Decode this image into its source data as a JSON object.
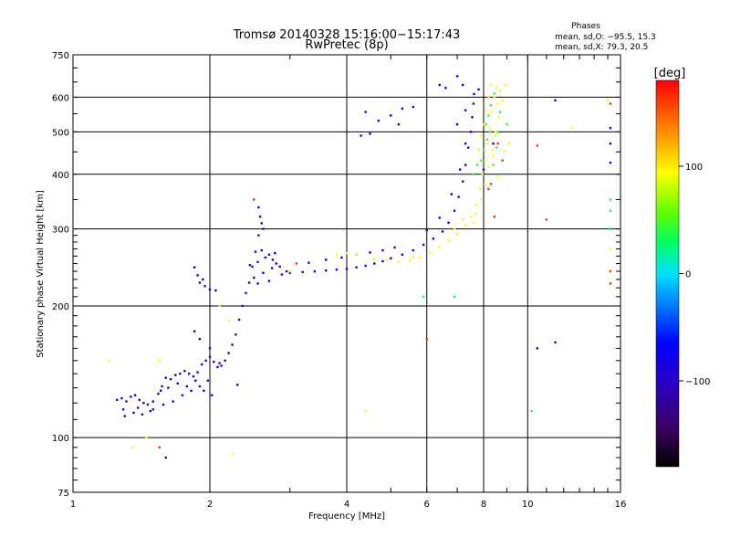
{
  "chart_data": {
    "type": "scatter",
    "title": "Tromsø 20140328 15:16:00−15:17:43",
    "subtitle": "RwPretec (8p)",
    "xlabel": "Frequency [MHz]",
    "ylabel": "Stationary phase Virtual Height [km]",
    "x_scale": "log",
    "y_scale": "log",
    "xlim": [
      1,
      16
    ],
    "ylim": [
      75,
      750
    ],
    "x_ticks": [
      1,
      2,
      4,
      6,
      8,
      10,
      16
    ],
    "y_ticks": [
      75,
      100,
      200,
      300,
      400,
      500,
      600,
      750
    ],
    "grid": true,
    "stats": {
      "heading": "Phases",
      "line_o": "mean, sd,O: −95.5, 15.3",
      "line_x": "mean, sd,X:  79.3, 20.5"
    },
    "colorbar": {
      "label": "[deg]",
      "range": [
        -180,
        180
      ],
      "ticks": [
        {
          "value": 100,
          "label": "100"
        },
        {
          "value": 0,
          "label": "0"
        },
        {
          "value": -100,
          "label": "−100"
        }
      ]
    },
    "series": [
      {
        "color_value": -110,
        "points": [
          [
            1.25,
            122
          ],
          [
            1.28,
            123
          ],
          [
            1.31,
            121
          ],
          [
            1.34,
            124
          ],
          [
            1.37,
            125
          ],
          [
            1.4,
            122
          ],
          [
            1.43,
            120
          ],
          [
            1.46,
            119
          ],
          [
            1.5,
            121
          ],
          [
            1.54,
            126
          ],
          [
            1.57,
            131
          ],
          [
            1.6,
            137
          ],
          [
            1.64,
            136
          ],
          [
            1.68,
            139
          ],
          [
            1.72,
            140
          ],
          [
            1.76,
            142
          ],
          [
            1.8,
            140
          ],
          [
            1.84,
            138
          ],
          [
            1.88,
            141
          ],
          [
            1.92,
            147
          ],
          [
            1.96,
            150
          ],
          [
            2.0,
            153
          ],
          [
            2.04,
            149
          ],
          [
            2.08,
            145
          ],
          [
            2.12,
            146
          ],
          [
            2.16,
            150
          ],
          [
            2.2,
            156
          ],
          [
            2.24,
            163
          ],
          [
            2.28,
            172
          ],
          [
            2.32,
            186
          ],
          [
            2.36,
            200
          ],
          [
            2.4,
            214
          ],
          [
            2.44,
            226
          ],
          [
            2.48,
            246
          ],
          [
            2.52,
            266
          ],
          [
            2.56,
            290
          ],
          [
            2.6,
            309
          ],
          [
            2.56,
            336
          ],
          [
            2.58,
            320
          ],
          [
            2.62,
            300
          ],
          [
            1.3,
            112
          ],
          [
            1.36,
            114
          ],
          [
            1.42,
            113
          ],
          [
            1.5,
            116
          ],
          [
            1.58,
            119
          ],
          [
            1.66,
            121
          ],
          [
            1.74,
            125
          ],
          [
            1.82,
            128
          ],
          [
            1.9,
            131
          ],
          [
            1.98,
            135
          ],
          [
            1.29,
            116
          ],
          [
            1.39,
            117
          ],
          [
            1.48,
            115
          ],
          [
            1.56,
            128
          ],
          [
            1.62,
            130
          ],
          [
            1.7,
            133
          ],
          [
            1.78,
            131
          ],
          [
            1.86,
            135
          ],
          [
            1.94,
            128
          ],
          [
            2.02,
            125
          ],
          [
            1.85,
            245
          ],
          [
            1.9,
            226
          ],
          [
            1.95,
            222
          ],
          [
            2.0,
            218
          ],
          [
            2.06,
            217
          ],
          [
            1.88,
            235
          ],
          [
            1.93,
            230
          ],
          [
            1.6,
            90
          ],
          [
            1.85,
            175
          ],
          [
            1.9,
            168
          ],
          [
            2.0,
            160
          ],
          [
            2.1,
            148
          ],
          [
            2.3,
            132
          ]
        ]
      },
      {
        "color_value": -85,
        "points": [
          [
            2.45,
            248
          ],
          [
            2.55,
            252
          ],
          [
            2.65,
            258
          ],
          [
            2.75,
            255
          ],
          [
            2.85,
            246
          ],
          [
            2.95,
            240
          ],
          [
            2.6,
            268
          ],
          [
            2.7,
            262
          ],
          [
            2.8,
            250
          ],
          [
            2.5,
            232
          ],
          [
            2.62,
            238
          ],
          [
            2.74,
            244
          ],
          [
            2.88,
            236
          ],
          [
            2.55,
            225
          ],
          [
            2.7,
            228
          ],
          [
            2.78,
            264
          ],
          [
            3.0,
            238
          ],
          [
            3.2,
            239
          ],
          [
            3.4,
            240
          ],
          [
            3.6,
            241
          ],
          [
            3.8,
            242
          ],
          [
            4.0,
            243
          ],
          [
            4.2,
            245
          ],
          [
            4.4,
            247
          ],
          [
            4.6,
            250
          ],
          [
            4.8,
            253
          ],
          [
            5.0,
            257
          ],
          [
            5.3,
            262
          ],
          [
            5.6,
            268
          ],
          [
            5.9,
            276
          ],
          [
            6.2,
            285
          ],
          [
            6.5,
            296
          ],
          [
            6.7,
            310
          ],
          [
            6.9,
            330
          ],
          [
            7.05,
            355
          ],
          [
            7.2,
            385
          ],
          [
            7.3,
            420
          ],
          [
            7.4,
            460
          ],
          [
            7.5,
            500
          ],
          [
            7.55,
            540
          ],
          [
            7.6,
            580
          ],
          [
            7.62,
            610
          ],
          [
            3.3,
            251
          ],
          [
            3.6,
            255
          ],
          [
            3.9,
            258
          ],
          [
            4.2,
            262
          ],
          [
            4.5,
            265
          ],
          [
            4.8,
            268
          ],
          [
            5.1,
            272
          ],
          [
            6.0,
            298
          ],
          [
            6.4,
            318
          ],
          [
            6.8,
            360
          ],
          [
            7.1,
            410
          ],
          [
            7.3,
            470
          ],
          [
            7.0,
            520
          ],
          [
            7.3,
            560
          ],
          [
            7.2,
            640
          ],
          [
            4.3,
            490
          ],
          [
            4.5,
            495
          ],
          [
            4.7,
            530
          ],
          [
            5.0,
            545
          ],
          [
            5.3,
            565
          ],
          [
            5.6,
            570
          ],
          [
            4.4,
            555
          ],
          [
            5.2,
            520
          ],
          [
            6.4,
            640
          ],
          [
            6.6,
            630
          ],
          [
            7.0,
            670
          ],
          [
            7.8,
            625
          ],
          [
            10.5,
            160
          ],
          [
            11.5,
            590
          ],
          [
            11.5,
            165
          ],
          [
            15.2,
            425
          ],
          [
            15.2,
            470
          ],
          [
            15.2,
            510
          ],
          [
            8.0,
            410
          ],
          [
            8.4,
            470
          ]
        ]
      },
      {
        "color_value": 95,
        "points": [
          [
            4.6,
            256
          ],
          [
            4.9,
            254
          ],
          [
            5.2,
            252
          ],
          [
            5.5,
            254
          ],
          [
            5.8,
            258
          ],
          [
            6.1,
            264
          ],
          [
            6.4,
            272
          ],
          [
            6.7,
            282
          ],
          [
            7.0,
            292
          ],
          [
            7.3,
            305
          ],
          [
            7.5,
            320
          ],
          [
            7.7,
            340
          ],
          [
            7.85,
            370
          ],
          [
            7.95,
            400
          ],
          [
            8.05,
            430
          ],
          [
            8.15,
            470
          ],
          [
            8.25,
            510
          ],
          [
            8.35,
            555
          ],
          [
            8.45,
            600
          ],
          [
            8.55,
            630
          ],
          [
            7.8,
            455
          ],
          [
            7.9,
            490
          ],
          [
            8.0,
            520
          ],
          [
            8.1,
            560
          ],
          [
            8.2,
            600
          ],
          [
            8.3,
            640
          ],
          [
            8.6,
            580
          ],
          [
            8.7,
            620
          ],
          [
            8.5,
            490
          ],
          [
            8.4,
            440
          ],
          [
            7.6,
            310
          ],
          [
            7.7,
            325
          ],
          [
            7.9,
            350
          ],
          [
            8.05,
            380
          ],
          [
            8.2,
            415
          ],
          [
            8.35,
            455
          ],
          [
            8.5,
            500
          ],
          [
            8.65,
            540
          ],
          [
            8.8,
            590
          ],
          [
            8.95,
            640
          ],
          [
            3.8,
            262
          ],
          [
            4.0,
            264
          ],
          [
            4.2,
            262
          ],
          [
            5.6,
            258
          ],
          [
            6.9,
            300
          ],
          [
            7.2,
            315
          ],
          [
            8.6,
            395
          ],
          [
            8.9,
            450
          ],
          [
            9.1,
            470
          ],
          [
            3.0,
            240
          ],
          [
            4.4,
            115
          ],
          [
            1.2,
            150
          ],
          [
            1.35,
            95
          ],
          [
            1.45,
            100
          ],
          [
            1.55,
            150
          ],
          [
            2.1,
            200
          ],
          [
            2.2,
            185
          ],
          [
            2.25,
            92
          ],
          [
            12.5,
            510
          ],
          [
            15.2,
            270
          ],
          [
            15.0,
            590
          ]
        ]
      },
      {
        "color_value": 40,
        "points": [
          [
            8.1,
            520
          ],
          [
            8.2,
            545
          ],
          [
            8.3,
            575
          ],
          [
            8.15,
            480
          ],
          [
            8.25,
            500
          ],
          [
            7.9,
            430
          ],
          [
            8.0,
            455
          ],
          [
            8.4,
            420
          ],
          [
            8.55,
            460
          ],
          [
            8.6,
            500
          ],
          [
            7.6,
            400
          ],
          [
            7.75,
            420
          ],
          [
            8.7,
            555
          ],
          [
            9.0,
            520
          ],
          [
            8.45,
            612
          ]
        ]
      },
      {
        "color_value": 10,
        "points": [
          [
            10.2,
            115
          ],
          [
            15.2,
            350
          ],
          [
            15.2,
            330
          ],
          [
            15.2,
            300
          ],
          [
            5.9,
            210
          ],
          [
            6.9,
            210
          ]
        ]
      },
      {
        "color_value": 165,
        "points": [
          [
            8.2,
            370
          ],
          [
            8.3,
            380
          ],
          [
            8.6,
            470
          ],
          [
            8.8,
            430
          ],
          [
            6.0,
            168
          ],
          [
            10.5,
            465
          ],
          [
            11.0,
            315
          ],
          [
            15.2,
            240
          ],
          [
            15.2,
            225
          ],
          [
            15.2,
            580
          ],
          [
            3.1,
            250
          ],
          [
            2.5,
            350
          ],
          [
            1.55,
            95
          ],
          [
            8.45,
            320
          ]
        ]
      }
    ]
  }
}
